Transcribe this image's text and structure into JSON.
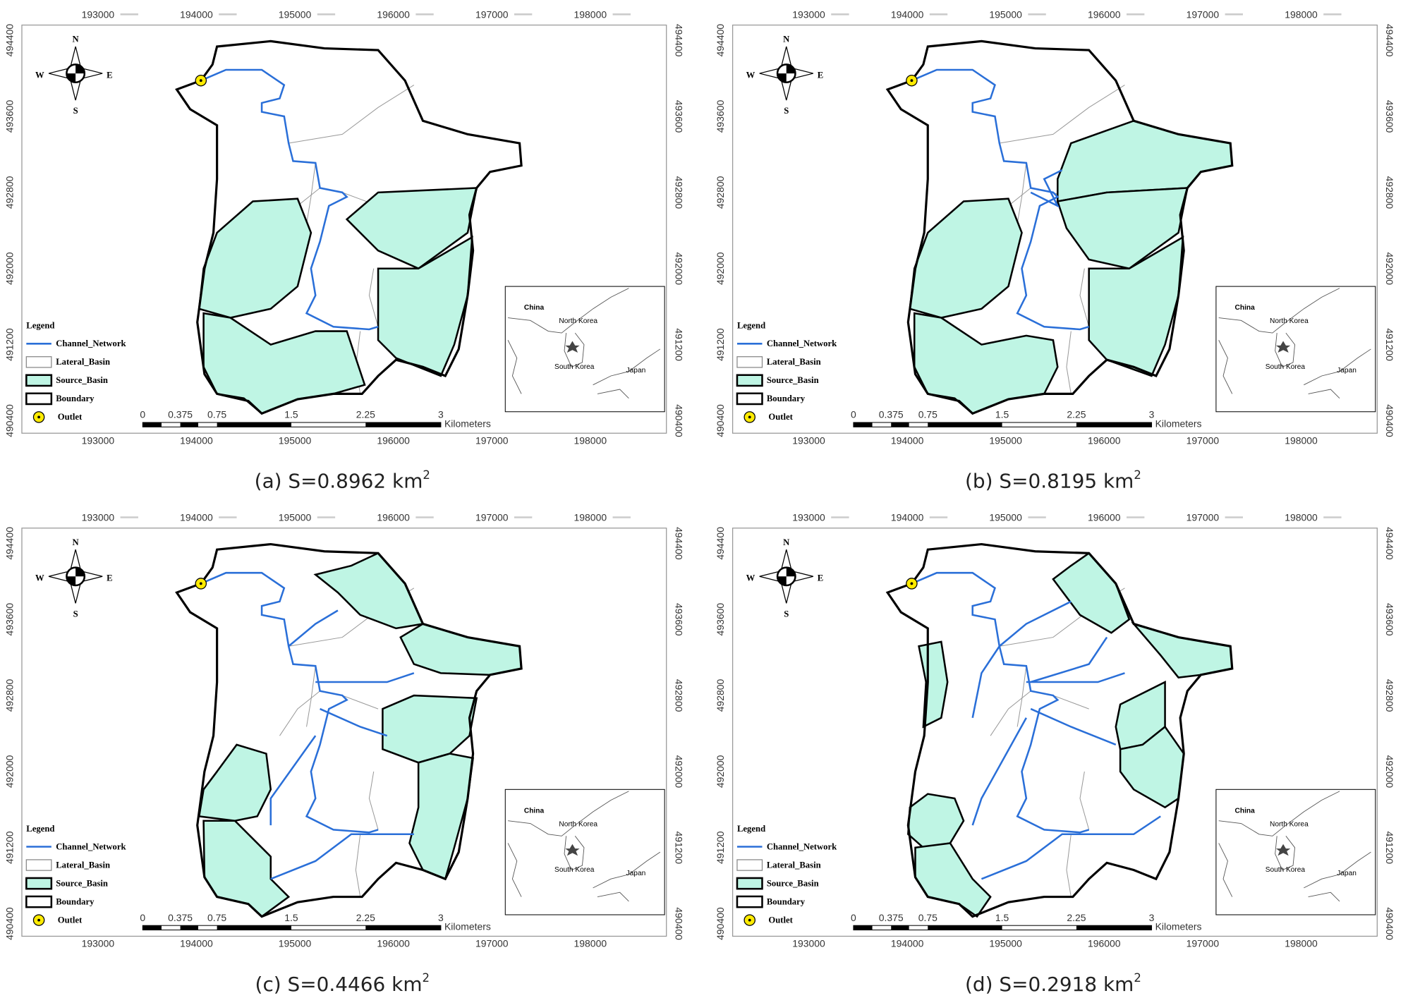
{
  "map": {
    "x_ticks": [
      "193000",
      "194000",
      "195000",
      "196000",
      "197000",
      "198000"
    ],
    "y_ticks": [
      "494400",
      "493600",
      "492800",
      "492000",
      "491200",
      "490400"
    ],
    "compass": {
      "n": "N",
      "s": "S",
      "w": "W",
      "e": "E"
    },
    "legend": {
      "title": "Legend",
      "items": [
        "Channel_Network",
        "Lateral_Basin",
        "Source_Basin",
        "Boundary",
        "Outlet"
      ]
    },
    "scale_bar": {
      "labels": [
        "0",
        "0.375",
        "0.75",
        "1.5",
        "2.25",
        "3"
      ],
      "unit": "Kilometers"
    },
    "inset": {
      "labels": [
        "China",
        "North Korea",
        "South Korea",
        "Japan"
      ]
    }
  },
  "panels": [
    {
      "caption": "(a) S=0.8962 km",
      "superscript": "2"
    },
    {
      "caption": "(b) S=0.8195 km",
      "superscript": "2"
    },
    {
      "caption": "(c) S=0.4466 km",
      "superscript": "2"
    },
    {
      "caption": "(d) S=0.2918 km",
      "superscript": "2"
    }
  ]
}
